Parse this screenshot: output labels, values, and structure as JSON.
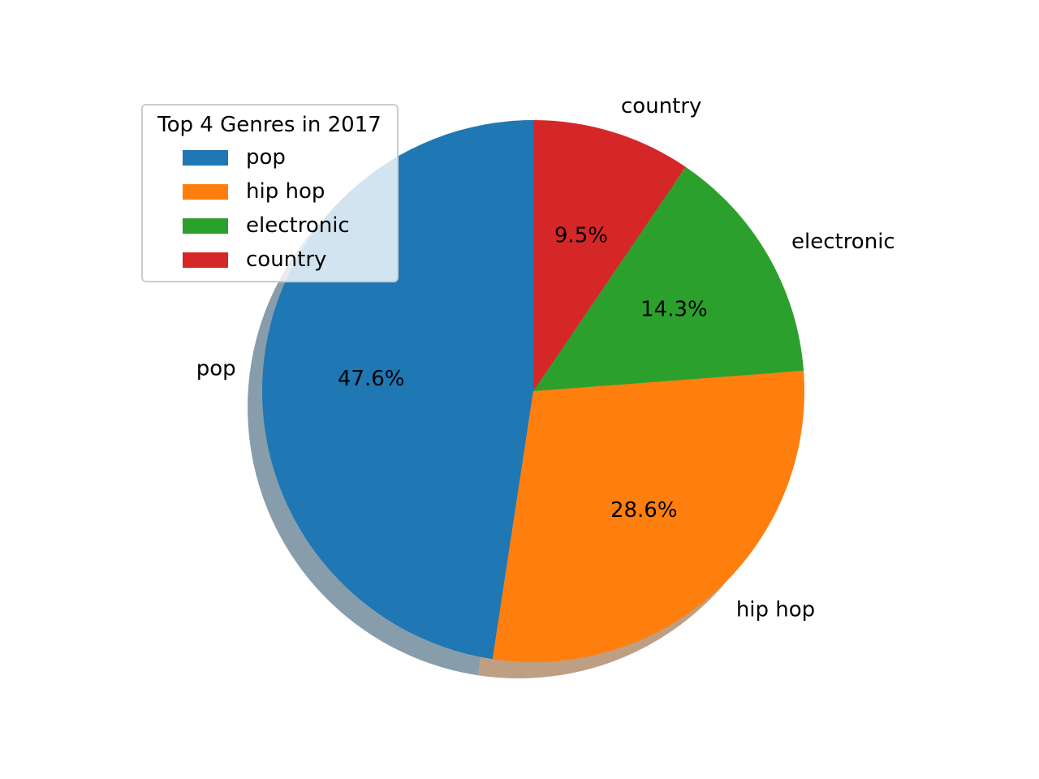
{
  "chart_data": {
    "type": "pie",
    "title": "",
    "legend_title": "Top 4 Genres in 2017",
    "legend_position": "upper-left",
    "shadow": true,
    "start_angle_deg": 90,
    "direction": "counterclockwise",
    "slices": [
      {
        "label": "pop",
        "value": 47.6,
        "pct_label": "47.6%",
        "color": "#1f77b4"
      },
      {
        "label": "hip hop",
        "value": 28.6,
        "pct_label": "28.6%",
        "color": "#ff7f0e"
      },
      {
        "label": "electronic",
        "value": 14.3,
        "pct_label": "14.3%",
        "color": "#2ca02c"
      },
      {
        "label": "country",
        "value": 9.5,
        "pct_label": "9.5%",
        "color": "#d62728"
      }
    ]
  }
}
